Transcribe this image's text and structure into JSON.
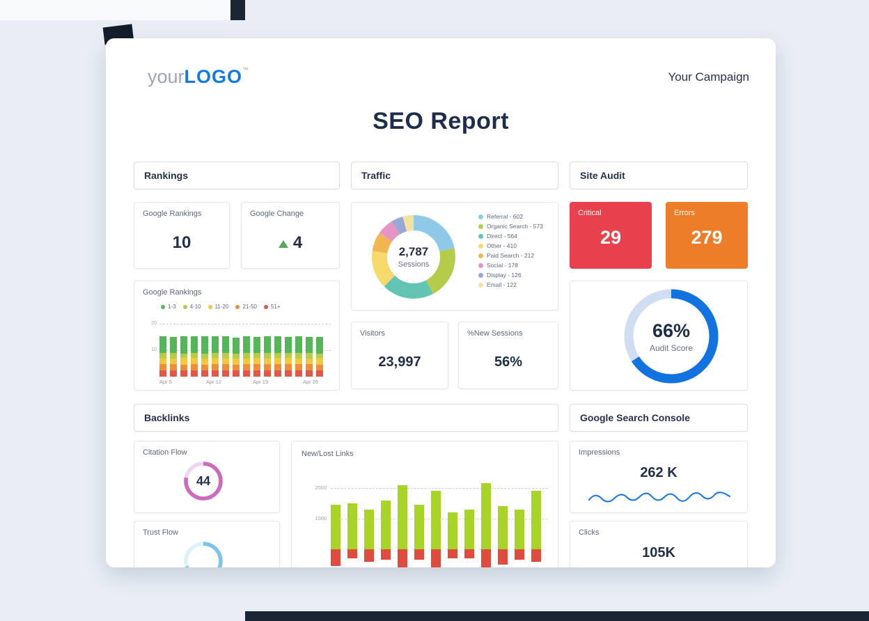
{
  "header": {
    "logo_prefix": "your",
    "logo_main": "LOGO",
    "logo_tm": "™",
    "campaign_label": "Your Campaign",
    "report_title": "SEO Report"
  },
  "rankings": {
    "section_title": "Rankings",
    "google_rankings_label": "Google Rankings",
    "google_rankings_value": "10",
    "google_change_label": "Google Change",
    "google_change_value": "4",
    "google_change_direction": "up"
  },
  "traffic": {
    "section_title": "Traffic",
    "donut_center_value": "2,787",
    "donut_center_label": "Sessions",
    "visitors_label": "Visitors",
    "visitors_value": "23,997",
    "new_sessions_label": "%New Sessions",
    "new_sessions_value": "56%"
  },
  "site_audit": {
    "section_title": "Site Audit",
    "critical_label": "Critical",
    "critical_value": "29",
    "errors_label": "Errors",
    "errors_value": "279",
    "audit_score_value": "66%",
    "audit_score_label": "Audit Score"
  },
  "backlinks": {
    "section_title": "Backlinks",
    "citation_flow_label": "Citation Flow",
    "citation_flow_value": "44",
    "trust_flow_label": "Trust Flow"
  },
  "search_console": {
    "section_title": "Google Search Console",
    "impressions_label": "Impressions",
    "impressions_value": "262 K",
    "clicks_label": "Clicks",
    "clicks_value": "105K"
  },
  "colors": {
    "accent_blue": "#1473e6",
    "critical_red": "#e8414d",
    "errors_orange": "#ee7d2a",
    "citation_pink": "#c96cc0",
    "trust_blue": "#7ec3ea",
    "navy_text": "#1f2d4c"
  },
  "chart_data": [
    {
      "name": "google_rankings_distribution",
      "type": "stacked_bar",
      "title": "Google Rankings",
      "x_labels": [
        "Apr 5",
        "Apr 12",
        "Apr 19",
        "Apr 26"
      ],
      "ylim": [
        0,
        20
      ],
      "ytick_labels": [
        "20",
        "10"
      ],
      "series": [
        {
          "name": "1-3",
          "color": "#55b559",
          "values": [
            6.3,
            6.1,
            6.4,
            6.2,
            6.5,
            6.2,
            6.3,
            6.1,
            6.4,
            6.2,
            6.3,
            6.5,
            6.2,
            6.4,
            6.1,
            6.3
          ]
        },
        {
          "name": "4-10",
          "color": "#b5cc4b",
          "values": [
            1.9,
            2.0,
            1.8,
            2.0,
            1.9,
            2.0,
            1.9,
            1.8,
            2.0,
            1.9,
            2.0,
            1.8,
            1.9,
            2.0,
            1.9,
            1.8
          ]
        },
        {
          "name": "11-20",
          "color": "#f2c83f",
          "values": [
            2.3,
            2.2,
            2.4,
            2.2,
            2.3,
            2.2,
            2.3,
            2.4,
            2.2,
            2.3,
            2.2,
            2.4,
            2.3,
            2.2,
            2.3,
            2.4
          ]
        },
        {
          "name": "21-50",
          "color": "#ee8e3b",
          "values": [
            2.3,
            2.4,
            2.2,
            2.3,
            2.3,
            2.4,
            2.2,
            2.3,
            2.3,
            2.2,
            2.4,
            2.3,
            2.2,
            2.3,
            2.4,
            2.2
          ]
        },
        {
          "name": "51+",
          "color": "#e2574c",
          "values": [
            2.4,
            2.3,
            2.4,
            2.5,
            2.3,
            2.4,
            2.5,
            2.3,
            2.4,
            2.5,
            2.3,
            2.4,
            2.5,
            2.4,
            2.3,
            2.4
          ]
        }
      ]
    },
    {
      "name": "traffic_sources",
      "type": "pie",
      "center_value": "2,787",
      "center_label": "Sessions",
      "segments": [
        {
          "label": "Referral",
          "value": 602,
          "color": "#8ecae8"
        },
        {
          "label": "Organic Search",
          "value": 573,
          "color": "#b5cc4b"
        },
        {
          "label": "Direct",
          "value": 564,
          "color": "#62c4b2"
        },
        {
          "label": "Other",
          "value": 410,
          "color": "#f5d96a"
        },
        {
          "label": "Paid Search",
          "value": 212,
          "color": "#f0b652"
        },
        {
          "label": "Social",
          "value": 178,
          "color": "#e794c5"
        },
        {
          "label": "Display",
          "value": 126,
          "color": "#97a8d6"
        },
        {
          "label": "Email",
          "value": 122,
          "color": "#f3e3a0"
        }
      ]
    },
    {
      "name": "audit_score",
      "type": "donut_gauge",
      "percent": 66,
      "color": "#1273e0",
      "track_color": "#cfdef2",
      "value_label": "66%",
      "caption": "Audit Score"
    },
    {
      "name": "new_lost_links",
      "type": "bar",
      "title": "New/Lost Links",
      "ytick_labels": [
        "2000",
        "1000"
      ],
      "series": [
        {
          "name": "new",
          "color": "#a8d427",
          "values": [
            1450,
            1500,
            1300,
            1600,
            2100,
            1450,
            1900,
            1200,
            1300,
            2150,
            1400,
            1300,
            1900
          ]
        },
        {
          "name": "lost",
          "color": "#e04b40",
          "values": [
            550,
            300,
            400,
            350,
            700,
            350,
            650,
            300,
            300,
            600,
            500,
            350,
            400
          ]
        }
      ]
    },
    {
      "name": "citation_flow_gauge",
      "type": "donut_gauge",
      "percent": 78,
      "color": "#c96cc0",
      "track_color": "#eed7ee",
      "value_label": "44"
    },
    {
      "name": "trust_flow_gauge",
      "type": "donut_gauge",
      "percent": 70,
      "color": "#7ec3ea",
      "track_color": "#def0fa"
    }
  ]
}
